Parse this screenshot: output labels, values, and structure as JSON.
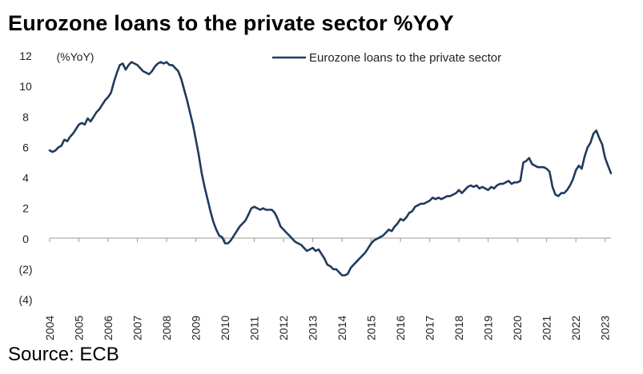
{
  "title": "Eurozone loans to the private sector %YoY",
  "source": "Source: ECB",
  "chart_data": {
    "type": "line",
    "ylabel": "(%YoY)",
    "ylim": [
      -4,
      12
    ],
    "yticks": [
      {
        "value": 12,
        "label": "12"
      },
      {
        "value": 10,
        "label": "10"
      },
      {
        "value": 8,
        "label": "8"
      },
      {
        "value": 6,
        "label": "6"
      },
      {
        "value": 4,
        "label": "4"
      },
      {
        "value": 2,
        "label": "2"
      },
      {
        "value": 0,
        "label": "0"
      },
      {
        "value": -2,
        "label": "(2)"
      },
      {
        "value": -4,
        "label": "(4)"
      }
    ],
    "xlim": [
      2004,
      2023.2
    ],
    "xticks": [
      "2004",
      "2005",
      "2006",
      "2007",
      "2008",
      "2009",
      "2010",
      "2011",
      "2012",
      "2013",
      "2014",
      "2015",
      "2016",
      "2017",
      "2018",
      "2019",
      "2020",
      "2021",
      "2022",
      "2023"
    ],
    "legend": "top-right",
    "series": [
      {
        "name": "Eurozone loans to the private sector",
        "color": "#1f3b5c",
        "points": [
          [
            2004.0,
            5.8
          ],
          [
            2004.1,
            5.7
          ],
          [
            2004.2,
            5.8
          ],
          [
            2004.3,
            6.0
          ],
          [
            2004.4,
            6.1
          ],
          [
            2004.5,
            6.5
          ],
          [
            2004.6,
            6.4
          ],
          [
            2004.7,
            6.7
          ],
          [
            2004.8,
            6.9
          ],
          [
            2004.9,
            7.2
          ],
          [
            2005.0,
            7.5
          ],
          [
            2005.1,
            7.6
          ],
          [
            2005.2,
            7.5
          ],
          [
            2005.3,
            7.9
          ],
          [
            2005.4,
            7.7
          ],
          [
            2005.5,
            8.0
          ],
          [
            2005.6,
            8.3
          ],
          [
            2005.7,
            8.5
          ],
          [
            2005.8,
            8.8
          ],
          [
            2005.9,
            9.1
          ],
          [
            2006.0,
            9.3
          ],
          [
            2006.1,
            9.6
          ],
          [
            2006.2,
            10.3
          ],
          [
            2006.3,
            10.9
          ],
          [
            2006.4,
            11.4
          ],
          [
            2006.5,
            11.5
          ],
          [
            2006.6,
            11.1
          ],
          [
            2006.7,
            11.4
          ],
          [
            2006.8,
            11.6
          ],
          [
            2006.9,
            11.5
          ],
          [
            2007.0,
            11.4
          ],
          [
            2007.1,
            11.2
          ],
          [
            2007.2,
            11.0
          ],
          [
            2007.3,
            10.9
          ],
          [
            2007.4,
            10.8
          ],
          [
            2007.5,
            11.0
          ],
          [
            2007.6,
            11.3
          ],
          [
            2007.7,
            11.5
          ],
          [
            2007.8,
            11.6
          ],
          [
            2007.9,
            11.5
          ],
          [
            2008.0,
            11.6
          ],
          [
            2008.1,
            11.4
          ],
          [
            2008.2,
            11.4
          ],
          [
            2008.3,
            11.2
          ],
          [
            2008.4,
            11.0
          ],
          [
            2008.5,
            10.5
          ],
          [
            2008.6,
            9.8
          ],
          [
            2008.7,
            9.1
          ],
          [
            2008.8,
            8.3
          ],
          [
            2008.9,
            7.5
          ],
          [
            2009.0,
            6.5
          ],
          [
            2009.1,
            5.5
          ],
          [
            2009.2,
            4.3
          ],
          [
            2009.3,
            3.4
          ],
          [
            2009.4,
            2.6
          ],
          [
            2009.5,
            1.8
          ],
          [
            2009.6,
            1.1
          ],
          [
            2009.7,
            0.6
          ],
          [
            2009.8,
            0.2
          ],
          [
            2009.9,
            0.1
          ],
          [
            2010.0,
            -0.3
          ],
          [
            2010.1,
            -0.3
          ],
          [
            2010.2,
            -0.1
          ],
          [
            2010.3,
            0.2
          ],
          [
            2010.4,
            0.5
          ],
          [
            2010.5,
            0.8
          ],
          [
            2010.6,
            1.0
          ],
          [
            2010.7,
            1.2
          ],
          [
            2010.8,
            1.6
          ],
          [
            2010.9,
            2.0
          ],
          [
            2011.0,
            2.1
          ],
          [
            2011.1,
            2.0
          ],
          [
            2011.2,
            1.9
          ],
          [
            2011.3,
            2.0
          ],
          [
            2011.4,
            1.9
          ],
          [
            2011.5,
            1.9
          ],
          [
            2011.6,
            1.9
          ],
          [
            2011.7,
            1.7
          ],
          [
            2011.8,
            1.3
          ],
          [
            2011.9,
            0.8
          ],
          [
            2012.0,
            0.6
          ],
          [
            2012.1,
            0.4
          ],
          [
            2012.2,
            0.2
          ],
          [
            2012.3,
            0.0
          ],
          [
            2012.4,
            -0.2
          ],
          [
            2012.5,
            -0.3
          ],
          [
            2012.6,
            -0.4
          ],
          [
            2012.7,
            -0.6
          ],
          [
            2012.8,
            -0.8
          ],
          [
            2012.9,
            -0.7
          ],
          [
            2013.0,
            -0.6
          ],
          [
            2013.1,
            -0.8
          ],
          [
            2013.2,
            -0.7
          ],
          [
            2013.3,
            -1.0
          ],
          [
            2013.4,
            -1.3
          ],
          [
            2013.5,
            -1.7
          ],
          [
            2013.6,
            -1.8
          ],
          [
            2013.7,
            -2.0
          ],
          [
            2013.8,
            -2.0
          ],
          [
            2013.9,
            -2.2
          ],
          [
            2014.0,
            -2.4
          ],
          [
            2014.1,
            -2.4
          ],
          [
            2014.2,
            -2.3
          ],
          [
            2014.3,
            -1.9
          ],
          [
            2014.4,
            -1.7
          ],
          [
            2014.5,
            -1.5
          ],
          [
            2014.6,
            -1.3
          ],
          [
            2014.7,
            -1.1
          ],
          [
            2014.8,
            -0.9
          ],
          [
            2014.9,
            -0.6
          ],
          [
            2015.0,
            -0.3
          ],
          [
            2015.1,
            -0.1
          ],
          [
            2015.2,
            0.0
          ],
          [
            2015.3,
            0.1
          ],
          [
            2015.4,
            0.2
          ],
          [
            2015.5,
            0.4
          ],
          [
            2015.6,
            0.6
          ],
          [
            2015.7,
            0.5
          ],
          [
            2015.8,
            0.8
          ],
          [
            2015.9,
            1.0
          ],
          [
            2016.0,
            1.3
          ],
          [
            2016.1,
            1.2
          ],
          [
            2016.2,
            1.4
          ],
          [
            2016.3,
            1.7
          ],
          [
            2016.4,
            1.8
          ],
          [
            2016.5,
            2.1
          ],
          [
            2016.6,
            2.2
          ],
          [
            2016.7,
            2.3
          ],
          [
            2016.8,
            2.3
          ],
          [
            2016.9,
            2.4
          ],
          [
            2017.0,
            2.5
          ],
          [
            2017.1,
            2.7
          ],
          [
            2017.2,
            2.6
          ],
          [
            2017.3,
            2.7
          ],
          [
            2017.4,
            2.6
          ],
          [
            2017.5,
            2.7
          ],
          [
            2017.6,
            2.8
          ],
          [
            2017.7,
            2.8
          ],
          [
            2017.8,
            2.9
          ],
          [
            2017.9,
            3.0
          ],
          [
            2018.0,
            3.2
          ],
          [
            2018.1,
            3.0
          ],
          [
            2018.2,
            3.2
          ],
          [
            2018.3,
            3.4
          ],
          [
            2018.4,
            3.5
          ],
          [
            2018.5,
            3.4
          ],
          [
            2018.6,
            3.5
          ],
          [
            2018.7,
            3.3
          ],
          [
            2018.8,
            3.4
          ],
          [
            2018.9,
            3.3
          ],
          [
            2019.0,
            3.2
          ],
          [
            2019.1,
            3.4
          ],
          [
            2019.2,
            3.3
          ],
          [
            2019.3,
            3.5
          ],
          [
            2019.4,
            3.6
          ],
          [
            2019.5,
            3.6
          ],
          [
            2019.6,
            3.7
          ],
          [
            2019.7,
            3.8
          ],
          [
            2019.8,
            3.6
          ],
          [
            2019.9,
            3.7
          ],
          [
            2020.0,
            3.7
          ],
          [
            2020.1,
            3.8
          ],
          [
            2020.2,
            5.0
          ],
          [
            2020.3,
            5.1
          ],
          [
            2020.4,
            5.3
          ],
          [
            2020.5,
            4.9
          ],
          [
            2020.6,
            4.8
          ],
          [
            2020.7,
            4.7
          ],
          [
            2020.8,
            4.7
          ],
          [
            2020.9,
            4.7
          ],
          [
            2021.0,
            4.6
          ],
          [
            2021.1,
            4.4
          ],
          [
            2021.2,
            3.4
          ],
          [
            2021.3,
            2.9
          ],
          [
            2021.4,
            2.8
          ],
          [
            2021.5,
            3.0
          ],
          [
            2021.6,
            3.0
          ],
          [
            2021.7,
            3.2
          ],
          [
            2021.8,
            3.5
          ],
          [
            2021.9,
            3.9
          ],
          [
            2022.0,
            4.5
          ],
          [
            2022.1,
            4.8
          ],
          [
            2022.2,
            4.6
          ],
          [
            2022.3,
            5.4
          ],
          [
            2022.4,
            6.0
          ],
          [
            2022.5,
            6.3
          ],
          [
            2022.6,
            6.9
          ],
          [
            2022.7,
            7.1
          ],
          [
            2022.8,
            6.6
          ],
          [
            2022.9,
            6.2
          ],
          [
            2023.0,
            5.3
          ],
          [
            2023.1,
            4.8
          ],
          [
            2023.2,
            4.3
          ]
        ]
      }
    ]
  }
}
